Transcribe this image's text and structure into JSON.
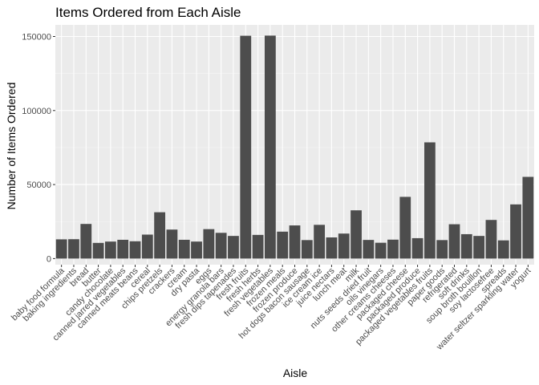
{
  "chart_data": {
    "type": "bar",
    "title": "Items Ordered from Each Aisle",
    "xlabel": "Aisle",
    "ylabel": "Number of Items Ordered",
    "ylim": [
      0,
      160000
    ],
    "yticks": [
      0,
      50000,
      100000,
      150000
    ],
    "ytick_labels": [
      "0",
      "50000",
      "100000",
      "150000"
    ],
    "grid": true,
    "colors": {
      "bar": "#4d4d4d",
      "panel": "#ebebeb",
      "grid_major": "#ffffff"
    },
    "categories": [
      "baby food formula",
      "baking ingredients",
      "bread",
      "butter",
      "candy chocolate",
      "canned jarred vegetables",
      "canned meats beans",
      "cereal",
      "chips pretzels",
      "crackers",
      "cream",
      "dry pasta",
      "eggs",
      "energy granola bars",
      "fresh dips tapenades",
      "fresh fruits",
      "fresh herbs",
      "fresh vegetables",
      "frozen meals",
      "frozen produce",
      "hot dogs bacon sausage",
      "ice cream ice",
      "juice nectars",
      "lunch meat",
      "milk",
      "nuts seeds dried fruit",
      "oils vinegars",
      "other creams cheeses",
      "packaged cheese",
      "packaged produce",
      "packaged vegetables fruits",
      "paper goods",
      "refrigerated",
      "soft drinks",
      "soup broth bouillon",
      "soy lactosefree",
      "spreads",
      "water seltzer sparkling water",
      "yogurt"
    ],
    "values": [
      13000,
      13100,
      23400,
      10600,
      11500,
      12700,
      11700,
      16200,
      31300,
      19600,
      12700,
      11500,
      19900,
      17400,
      15300,
      150500,
      16000,
      150600,
      18200,
      22400,
      12500,
      22800,
      14300,
      16900,
      32600,
      12600,
      10700,
      12800,
      41700,
      13800,
      78500,
      12500,
      23200,
      16500,
      15300,
      26100,
      12300,
      36600,
      55200
    ]
  }
}
